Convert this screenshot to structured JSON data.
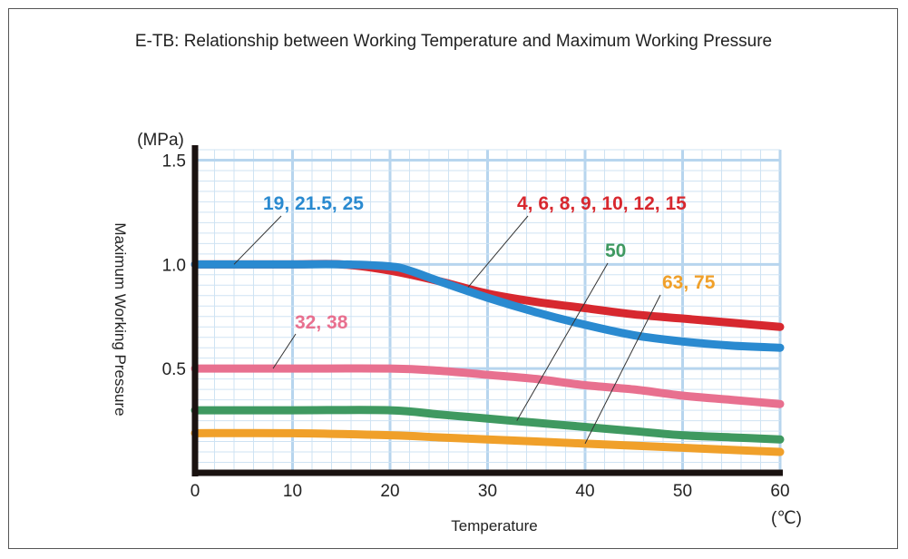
{
  "chart_data": {
    "type": "line",
    "title": "E-TB: Relationship between Working Temperature and Maximum Working Pressure",
    "xlabel": "Temperature",
    "ylabel": "Maximum Working Pressure",
    "x_unit": "(℃)",
    "y_unit": "(MPa)",
    "xlim": [
      0,
      60
    ],
    "ylim": [
      0,
      1.55
    ],
    "x_ticks": [
      "0",
      "10",
      "20",
      "30",
      "40",
      "50",
      "60"
    ],
    "y_ticks": [
      "0.5",
      "1.0",
      "1.5"
    ],
    "grid": true,
    "series": [
      {
        "name": "4, 6, 8, 9, 10, 12, 15",
        "color": "#d7282f",
        "x": [
          0,
          10,
          15,
          20,
          25,
          30,
          35,
          40,
          45,
          50,
          55,
          60
        ],
        "y": [
          1.0,
          1.0,
          1.0,
          0.97,
          0.92,
          0.86,
          0.82,
          0.79,
          0.76,
          0.74,
          0.72,
          0.7
        ]
      },
      {
        "name": "19, 21.5, 25",
        "color": "#2a8ad0",
        "x": [
          0,
          10,
          15,
          20,
          22,
          25,
          30,
          35,
          40,
          45,
          50,
          55,
          60
        ],
        "y": [
          1.0,
          1.0,
          1.0,
          0.99,
          0.97,
          0.92,
          0.84,
          0.77,
          0.71,
          0.66,
          0.63,
          0.61,
          0.6
        ]
      },
      {
        "name": "32, 38",
        "color": "#e8708f",
        "x": [
          0,
          10,
          20,
          25,
          30,
          35,
          40,
          45,
          50,
          55,
          60
        ],
        "y": [
          0.5,
          0.5,
          0.5,
          0.49,
          0.47,
          0.45,
          0.42,
          0.4,
          0.37,
          0.35,
          0.33
        ]
      },
      {
        "name": "50",
        "color": "#3f9960",
        "x": [
          0,
          10,
          20,
          25,
          30,
          35,
          40,
          45,
          50,
          55,
          60
        ],
        "y": [
          0.3,
          0.3,
          0.3,
          0.28,
          0.26,
          0.24,
          0.22,
          0.2,
          0.18,
          0.17,
          0.16
        ]
      },
      {
        "name": "63, 75",
        "color": "#f0a02a",
        "x": [
          0,
          10,
          20,
          25,
          30,
          35,
          40,
          45,
          50,
          55,
          60
        ],
        "y": [
          0.19,
          0.19,
          0.18,
          0.17,
          0.16,
          0.15,
          0.14,
          0.13,
          0.12,
          0.11,
          0.1
        ]
      }
    ],
    "annotations": [
      {
        "series": 1,
        "label": "19, 21.5, 25",
        "point_x": 4,
        "point_y": 1.0
      },
      {
        "series": 0,
        "label": "4, 6, 8, 9, 10, 12, 15",
        "point_x": 28,
        "point_y": 0.89
      },
      {
        "series": 3,
        "label": "50",
        "point_x": 33,
        "point_y": 0.25
      },
      {
        "series": 4,
        "label": "63, 75",
        "point_x": 40,
        "point_y": 0.14
      },
      {
        "series": 2,
        "label": "32, 38",
        "point_x": 8,
        "point_y": 0.5
      }
    ]
  }
}
